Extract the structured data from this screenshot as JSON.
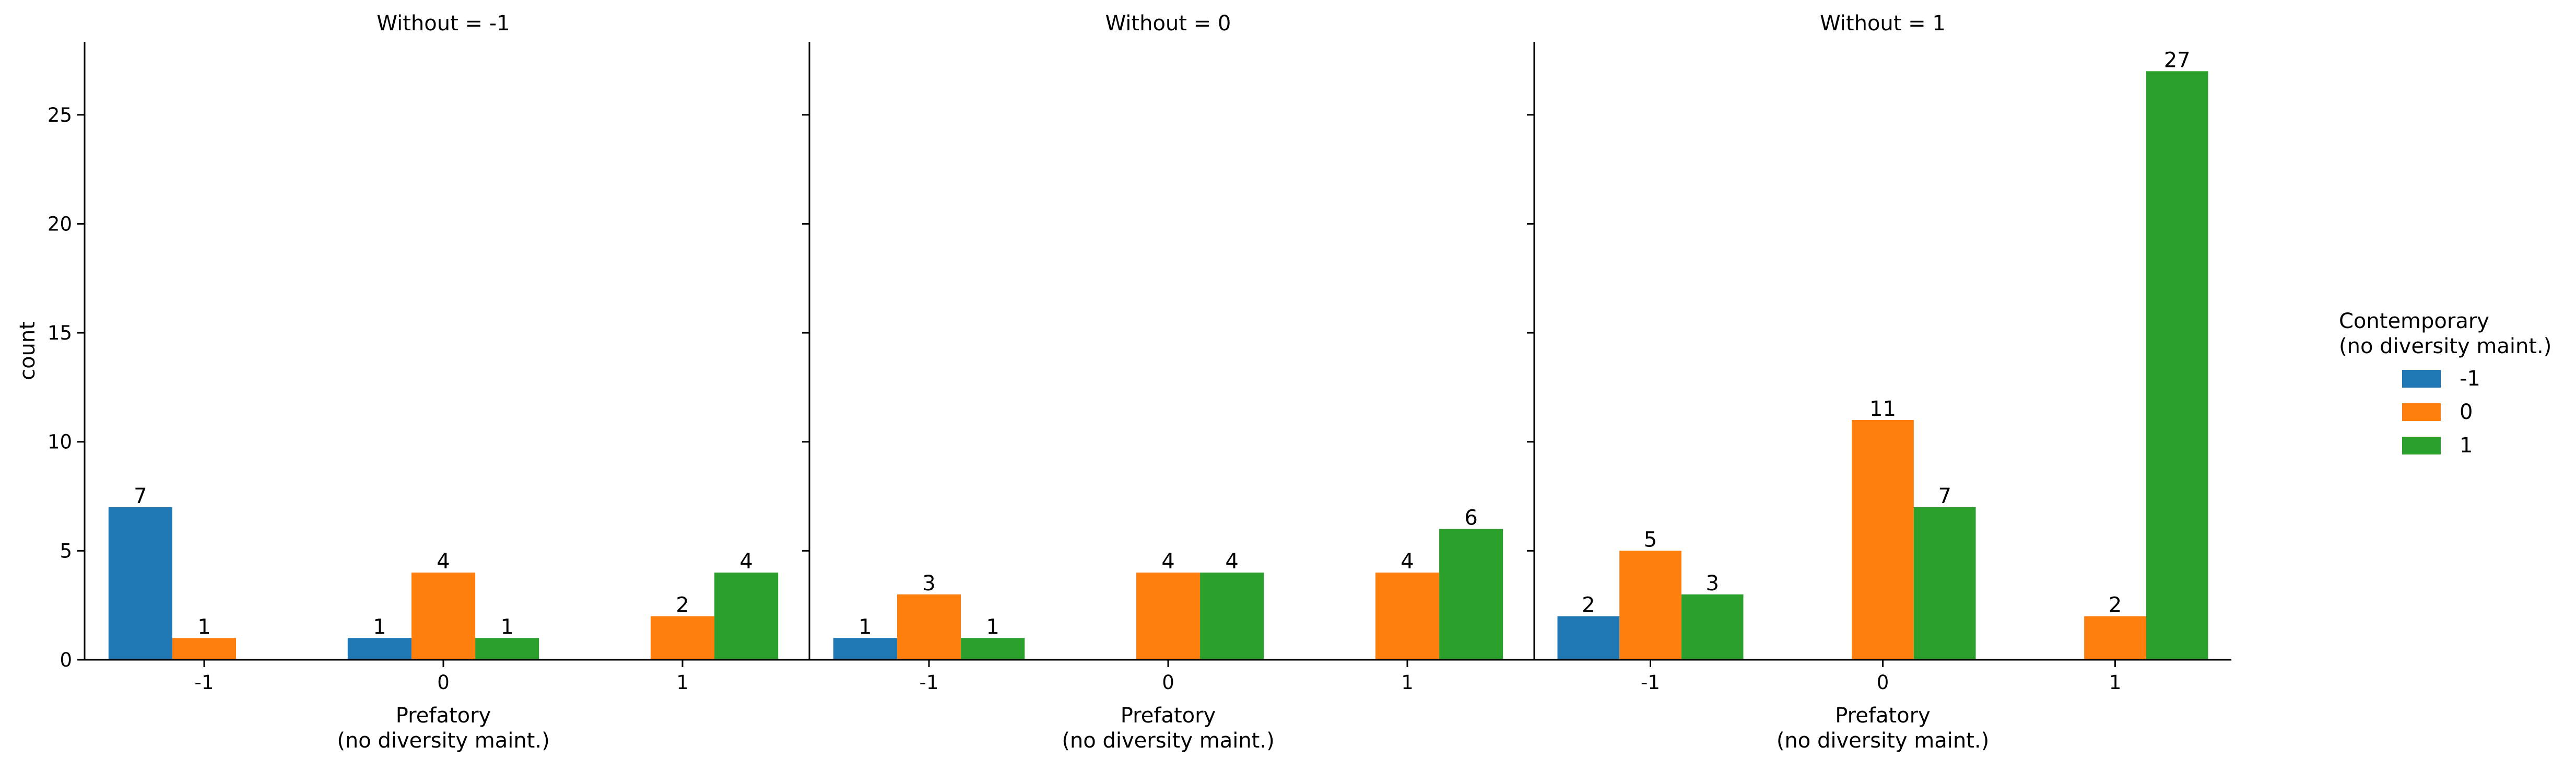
{
  "chart_data": {
    "type": "bar",
    "facet_variable": "Without",
    "ylabel": "count",
    "ylim": [
      0,
      28.35
    ],
    "yticks": [
      0,
      5,
      10,
      15,
      20,
      25
    ],
    "grid": false,
    "legend": {
      "title_line1": "Contemporary",
      "title_line2": "(no diversity maint.)",
      "placement": "right",
      "entries": [
        {
          "label": "-1",
          "color": "#1f77b4"
        },
        {
          "label": "0",
          "color": "#ff7f0e"
        },
        {
          "label": "1",
          "color": "#2ca02c"
        }
      ]
    },
    "panels": [
      {
        "title": "Without = -1",
        "xlabel_line1": "Prefatory",
        "xlabel_line2": "(no diversity maint.)",
        "categories": [
          "-1",
          "0",
          "1"
        ],
        "series": [
          {
            "name": "-1",
            "values": [
              7,
              1,
              0
            ]
          },
          {
            "name": "0",
            "values": [
              1,
              4,
              2
            ]
          },
          {
            "name": "1",
            "values": [
              0,
              1,
              4
            ]
          }
        ]
      },
      {
        "title": "Without = 0",
        "xlabel_line1": "Prefatory",
        "xlabel_line2": "(no diversity maint.)",
        "categories": [
          "-1",
          "0",
          "1"
        ],
        "series": [
          {
            "name": "-1",
            "values": [
              1,
              0,
              0
            ]
          },
          {
            "name": "0",
            "values": [
              3,
              4,
              4
            ]
          },
          {
            "name": "1",
            "values": [
              1,
              4,
              6
            ]
          }
        ]
      },
      {
        "title": "Without = 1",
        "xlabel_line1": "Prefatory",
        "xlabel_line2": "(no diversity maint.)",
        "categories": [
          "-1",
          "0",
          "1"
        ],
        "series": [
          {
            "name": "-1",
            "values": [
              2,
              0,
              0
            ]
          },
          {
            "name": "0",
            "values": [
              5,
              11,
              2
            ]
          },
          {
            "name": "1",
            "values": [
              3,
              7,
              27
            ]
          }
        ]
      }
    ]
  }
}
